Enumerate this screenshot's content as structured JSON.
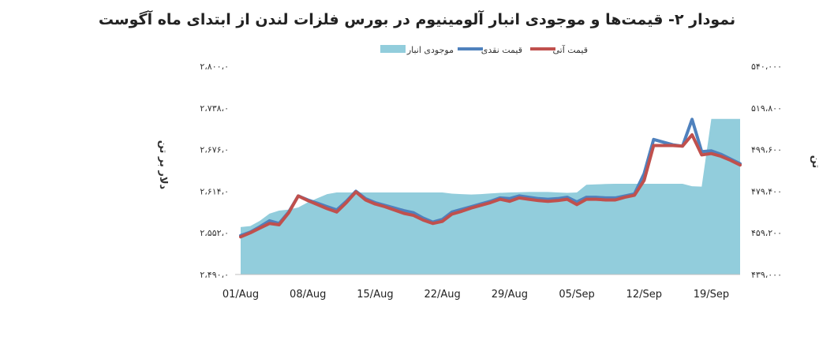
{
  "chart_data": {
    "type": "line",
    "title": "نمودار ۲- قیمت‌ها و موجودی انبار آلومینیوم در بورس فلزات لندن از ابتدای ماه آگوست",
    "ylabel_left": "دلار بر تن",
    "ylabel_right": "تن",
    "left_axis": {
      "range": [
        2490,
        2800
      ],
      "tick_labels": [
        "۲،۴۹۰،۰",
        "۲،۵۵۲،۰",
        "۲،۶۱۴،۰",
        "۲،۶۷۶،۰",
        "۲،۷۳۸،۰",
        "۲،۸۰۰،۰"
      ]
    },
    "right_axis": {
      "range": [
        439000,
        540000
      ],
      "tick_labels": [
        "۴۳۹،۰۰۰",
        "۴۵۹،۲۰۰",
        "۴۷۹،۴۰۰",
        "۴۹۹،۶۰۰",
        "۵۱۹،۸۰۰",
        "۵۴۰،۰۰۰"
      ]
    },
    "x_tick_labels": [
      "01/Aug",
      "08/Aug",
      "15/Aug",
      "22/Aug",
      "29/Aug",
      "05/Sep",
      "12/Sep",
      "19/Sep"
    ],
    "legend_position": "top",
    "series": [
      {
        "name": "موجودی انبار",
        "kind": "area",
        "axis": "right",
        "color": "#92cddc",
        "points": [
          [
            0,
            462000
          ],
          [
            1,
            462500
          ],
          [
            2,
            465000
          ],
          [
            3,
            468500
          ],
          [
            4,
            470000
          ],
          [
            5,
            470500
          ],
          [
            6,
            471500
          ],
          [
            7,
            474000
          ],
          [
            8,
            476000
          ],
          [
            9,
            478000
          ],
          [
            10,
            478800
          ],
          [
            11,
            478800
          ],
          [
            12,
            478800
          ],
          [
            13,
            478800
          ],
          [
            14,
            478800
          ],
          [
            15,
            478800
          ],
          [
            16,
            478800
          ],
          [
            17,
            478800
          ],
          [
            18,
            478800
          ],
          [
            19,
            478800
          ],
          [
            20,
            478800
          ],
          [
            21,
            478800
          ],
          [
            22,
            478200
          ],
          [
            23,
            478000
          ],
          [
            24,
            477800
          ],
          [
            25,
            478000
          ],
          [
            26,
            478300
          ],
          [
            27,
            478600
          ],
          [
            28,
            478800
          ],
          [
            29,
            478900
          ],
          [
            30,
            479000
          ],
          [
            31,
            479000
          ],
          [
            32,
            479000
          ],
          [
            33,
            478800
          ],
          [
            34,
            478600
          ],
          [
            35,
            478800
          ],
          [
            36,
            482500
          ],
          [
            37,
            482700
          ],
          [
            38,
            482900
          ],
          [
            39,
            483000
          ],
          [
            40,
            483000
          ],
          [
            41,
            483000
          ],
          [
            42,
            483000
          ],
          [
            43,
            483000
          ],
          [
            44,
            483000
          ],
          [
            45,
            483000
          ],
          [
            46,
            483000
          ],
          [
            47,
            481800
          ],
          [
            48,
            481600
          ],
          [
            49,
            514500
          ],
          [
            50,
            514500
          ],
          [
            51,
            514500
          ],
          [
            52,
            514500
          ]
        ]
      },
      {
        "name": "قیمت نقدی",
        "kind": "line",
        "axis": "left",
        "color": "#4f81bd",
        "points": [
          [
            0,
            2548
          ],
          [
            1,
            2553
          ],
          [
            2,
            2561
          ],
          [
            3,
            2570
          ],
          [
            4,
            2566
          ],
          [
            5,
            2583
          ],
          [
            6,
            2607
          ],
          [
            7,
            2601
          ],
          [
            8,
            2596
          ],
          [
            9,
            2591
          ],
          [
            10,
            2586
          ],
          [
            11,
            2599
          ],
          [
            12,
            2614
          ],
          [
            13,
            2603
          ],
          [
            14,
            2597
          ],
          [
            15,
            2593
          ],
          [
            16,
            2589
          ],
          [
            17,
            2585
          ],
          [
            18,
            2582
          ],
          [
            19,
            2574
          ],
          [
            20,
            2568
          ],
          [
            21,
            2572
          ],
          [
            22,
            2583
          ],
          [
            23,
            2587
          ],
          [
            24,
            2591
          ],
          [
            25,
            2595
          ],
          [
            26,
            2599
          ],
          [
            27,
            2604
          ],
          [
            28,
            2603
          ],
          [
            29,
            2607
          ],
          [
            30,
            2605
          ],
          [
            31,
            2603
          ],
          [
            32,
            2602
          ],
          [
            33,
            2603
          ],
          [
            34,
            2605
          ],
          [
            35,
            2598
          ],
          [
            36,
            2605
          ],
          [
            37,
            2605
          ],
          [
            38,
            2604
          ],
          [
            39,
            2604
          ],
          [
            40,
            2607
          ],
          [
            41,
            2610
          ],
          [
            42,
            2640
          ],
          [
            43,
            2691
          ],
          [
            44,
            2687
          ],
          [
            45,
            2683
          ],
          [
            46,
            2681
          ],
          [
            47,
            2721
          ],
          [
            48,
            2673
          ],
          [
            49,
            2674
          ],
          [
            50,
            2669
          ],
          [
            51,
            2662
          ],
          [
            52,
            2655
          ]
        ]
      },
      {
        "name": "قیمت آتی",
        "kind": "line",
        "axis": "left",
        "color": "#c0504d",
        "points": [
          [
            0,
            2546
          ],
          [
            1,
            2552
          ],
          [
            2,
            2559
          ],
          [
            3,
            2566
          ],
          [
            4,
            2564
          ],
          [
            5,
            2582
          ],
          [
            6,
            2607
          ],
          [
            7,
            2600
          ],
          [
            8,
            2594
          ],
          [
            9,
            2588
          ],
          [
            10,
            2583
          ],
          [
            11,
            2597
          ],
          [
            12,
            2613
          ],
          [
            13,
            2601
          ],
          [
            14,
            2595
          ],
          [
            15,
            2591
          ],
          [
            16,
            2586
          ],
          [
            17,
            2581
          ],
          [
            18,
            2578
          ],
          [
            19,
            2571
          ],
          [
            20,
            2566
          ],
          [
            21,
            2569
          ],
          [
            22,
            2580
          ],
          [
            23,
            2584
          ],
          [
            24,
            2589
          ],
          [
            25,
            2593
          ],
          [
            26,
            2597
          ],
          [
            27,
            2602
          ],
          [
            28,
            2599
          ],
          [
            29,
            2604
          ],
          [
            30,
            2602
          ],
          [
            31,
            2600
          ],
          [
            32,
            2599
          ],
          [
            33,
            2600
          ],
          [
            34,
            2602
          ],
          [
            35,
            2594
          ],
          [
            36,
            2602
          ],
          [
            37,
            2602
          ],
          [
            38,
            2601
          ],
          [
            39,
            2601
          ],
          [
            40,
            2605
          ],
          [
            41,
            2608
          ],
          [
            42,
            2630
          ],
          [
            43,
            2682
          ],
          [
            44,
            2682
          ],
          [
            45,
            2682
          ],
          [
            46,
            2681
          ],
          [
            47,
            2698
          ],
          [
            48,
            2668
          ],
          [
            49,
            2670
          ],
          [
            50,
            2666
          ],
          [
            51,
            2660
          ],
          [
            52,
            2653
          ]
        ]
      }
    ]
  }
}
